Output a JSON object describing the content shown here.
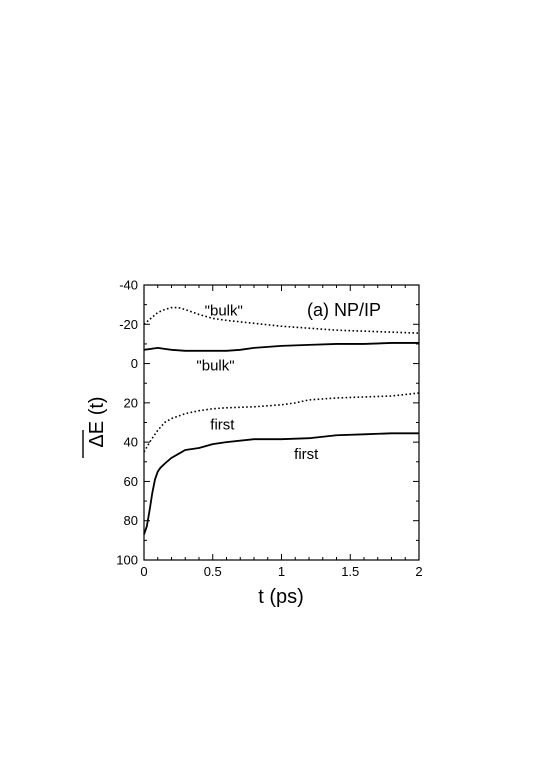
{
  "chart_data": {
    "type": "line",
    "title": "",
    "panel_label": "(a) NP/IP",
    "xlabel": "t (ps)",
    "ylabel": "ΔE (t)",
    "xlim": [
      0,
      2
    ],
    "ylim": [
      100,
      -40
    ],
    "y_inverted": true,
    "x_ticks": [
      0,
      0.5,
      1,
      1.5,
      2
    ],
    "x_tick_labels": [
      "0",
      "0.5",
      "1",
      "1.5",
      "2"
    ],
    "y_ticks": [
      -40,
      -20,
      0,
      20,
      40,
      60,
      80,
      100
    ],
    "y_tick_labels": [
      "-40",
      "-20",
      "0",
      "20",
      "40",
      "60",
      "80",
      "100"
    ],
    "grid": false,
    "series": [
      {
        "style": "dotted",
        "x": [
          0,
          0.05,
          0.1,
          0.15,
          0.2,
          0.25,
          0.3,
          0.4,
          0.5,
          0.6,
          0.8,
          1.0,
          1.2,
          1.4,
          1.6,
          1.8,
          2.0
        ],
        "y": [
          -20,
          -23,
          -26,
          -27.5,
          -28.5,
          -28.5,
          -27.5,
          -25,
          -23,
          -22,
          -20.5,
          -19,
          -18,
          -17,
          -16.5,
          -16,
          -15.5
        ]
      },
      {
        "style": "solid",
        "x": [
          0,
          0.05,
          0.1,
          0.15,
          0.2,
          0.3,
          0.4,
          0.5,
          0.6,
          0.7,
          0.8,
          1.0,
          1.2,
          1.4,
          1.6,
          1.8,
          2.0
        ],
        "y": [
          -7,
          -7.5,
          -8,
          -7.5,
          -7,
          -6.5,
          -6.5,
          -6.5,
          -6.5,
          -7,
          -8,
          -9,
          -9.5,
          -10,
          -10,
          -10.5,
          -10.5
        ]
      },
      {
        "style": "dotted",
        "x": [
          0,
          0.05,
          0.1,
          0.15,
          0.2,
          0.3,
          0.4,
          0.5,
          0.6,
          0.8,
          1.0,
          1.1,
          1.2,
          1.4,
          1.6,
          1.8,
          2.0
        ],
        "y": [
          45,
          39,
          34,
          30,
          28,
          25.5,
          24,
          23,
          22.5,
          22,
          21,
          20,
          18.5,
          17.5,
          17,
          16.5,
          15
        ]
      },
      {
        "style": "solid",
        "x": [
          0,
          0.02,
          0.04,
          0.06,
          0.08,
          0.1,
          0.12,
          0.15,
          0.2,
          0.25,
          0.3,
          0.4,
          0.5,
          0.6,
          0.8,
          1.0,
          1.2,
          1.4,
          1.6,
          1.8,
          2.0
        ],
        "y": [
          87,
          83,
          75,
          66,
          59,
          55,
          53,
          51,
          48,
          46,
          44,
          43,
          41,
          40,
          38.5,
          38.5,
          38,
          36.5,
          36,
          35.5,
          35.5
        ]
      }
    ],
    "annotations": [
      {
        "text": "\"bulk\"",
        "x": 0.58,
        "y": -27
      },
      {
        "text": "\"bulk\"",
        "x": 0.52,
        "y": 1
      },
      {
        "text": "first",
        "x": 0.57,
        "y": 31
      },
      {
        "text": "first",
        "x": 1.18,
        "y": 46
      }
    ]
  }
}
